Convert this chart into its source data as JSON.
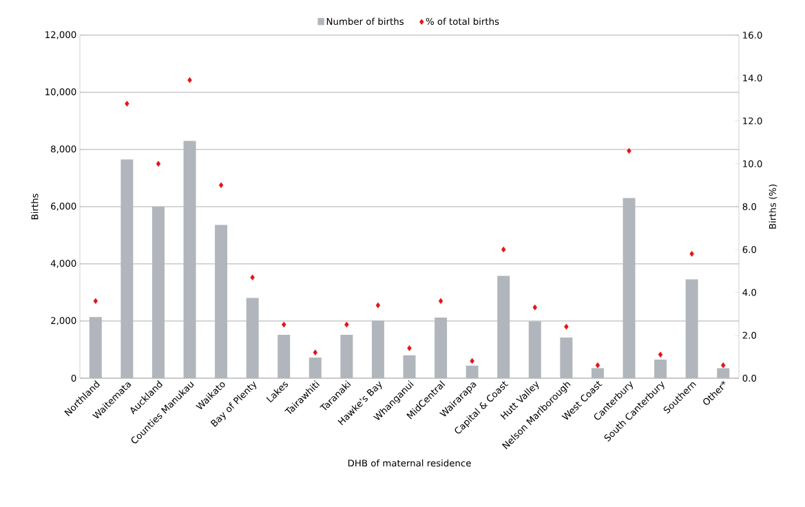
{
  "chart_data": {
    "type": "bar",
    "xlabel": "DHB of maternal residence",
    "ylabel": "Births",
    "y2label": "Births (%)",
    "categories": [
      "Northland",
      "Waitemata",
      "Auckland",
      "Counties Manukau",
      "Waikato",
      "Bay of Plenty",
      "Lakes",
      "Tairawhiti",
      "Taranaki",
      "Hawke's Bay",
      "Whanganui",
      "MidCentral",
      "Wairarapa",
      "Capital & Coast",
      "Hutt Valley",
      "Nelson Marlborough",
      "West Coast",
      "Canterbury",
      "South Canterbury",
      "Southern",
      "Other*"
    ],
    "series": [
      {
        "name": "Number of births",
        "color": "#b0b6bb",
        "values": [
          2140,
          7650,
          6000,
          8300,
          5360,
          2810,
          1520,
          720,
          1520,
          2010,
          800,
          2120,
          440,
          3580,
          1990,
          1420,
          350,
          6300,
          650,
          3460,
          350
        ]
      },
      {
        "name": "% of total births",
        "type": "scatter",
        "axis": "y2",
        "color": "#e3141b",
        "marker": "diamond",
        "values": [
          3.6,
          12.8,
          10.0,
          13.9,
          9.0,
          4.7,
          2.5,
          1.2,
          2.5,
          3.4,
          1.4,
          3.6,
          0.8,
          6.0,
          3.3,
          2.4,
          0.6,
          10.6,
          1.1,
          5.8,
          0.6
        ]
      }
    ],
    "ylim": [
      0,
      12000
    ],
    "yticks": [
      0,
      {
        "value": 2000,
        "label": "2,000"
      },
      {
        "value": 4000,
        "label": "4,000"
      },
      {
        "value": 6000,
        "label": "6,000"
      },
      {
        "value": 8000,
        "label": "8,000"
      },
      {
        "value": 10000,
        "label": "10,000"
      },
      {
        "value": 12000,
        "label": "12,000"
      }
    ],
    "y2lim": [
      0,
      16
    ],
    "y2ticks": [
      {
        "value": 0,
        "label": "0.0"
      },
      {
        "value": 2,
        "label": "2.0"
      },
      {
        "value": 4,
        "label": "4.0"
      },
      {
        "value": 6,
        "label": "6.0"
      },
      {
        "value": 8,
        "label": "8.0"
      },
      {
        "value": 10,
        "label": "10.0"
      },
      {
        "value": 12,
        "label": "12.0"
      },
      {
        "value": 14,
        "label": "14.0"
      },
      {
        "value": 16,
        "label": "16.0"
      }
    ],
    "grid": "y",
    "legend": "top"
  }
}
